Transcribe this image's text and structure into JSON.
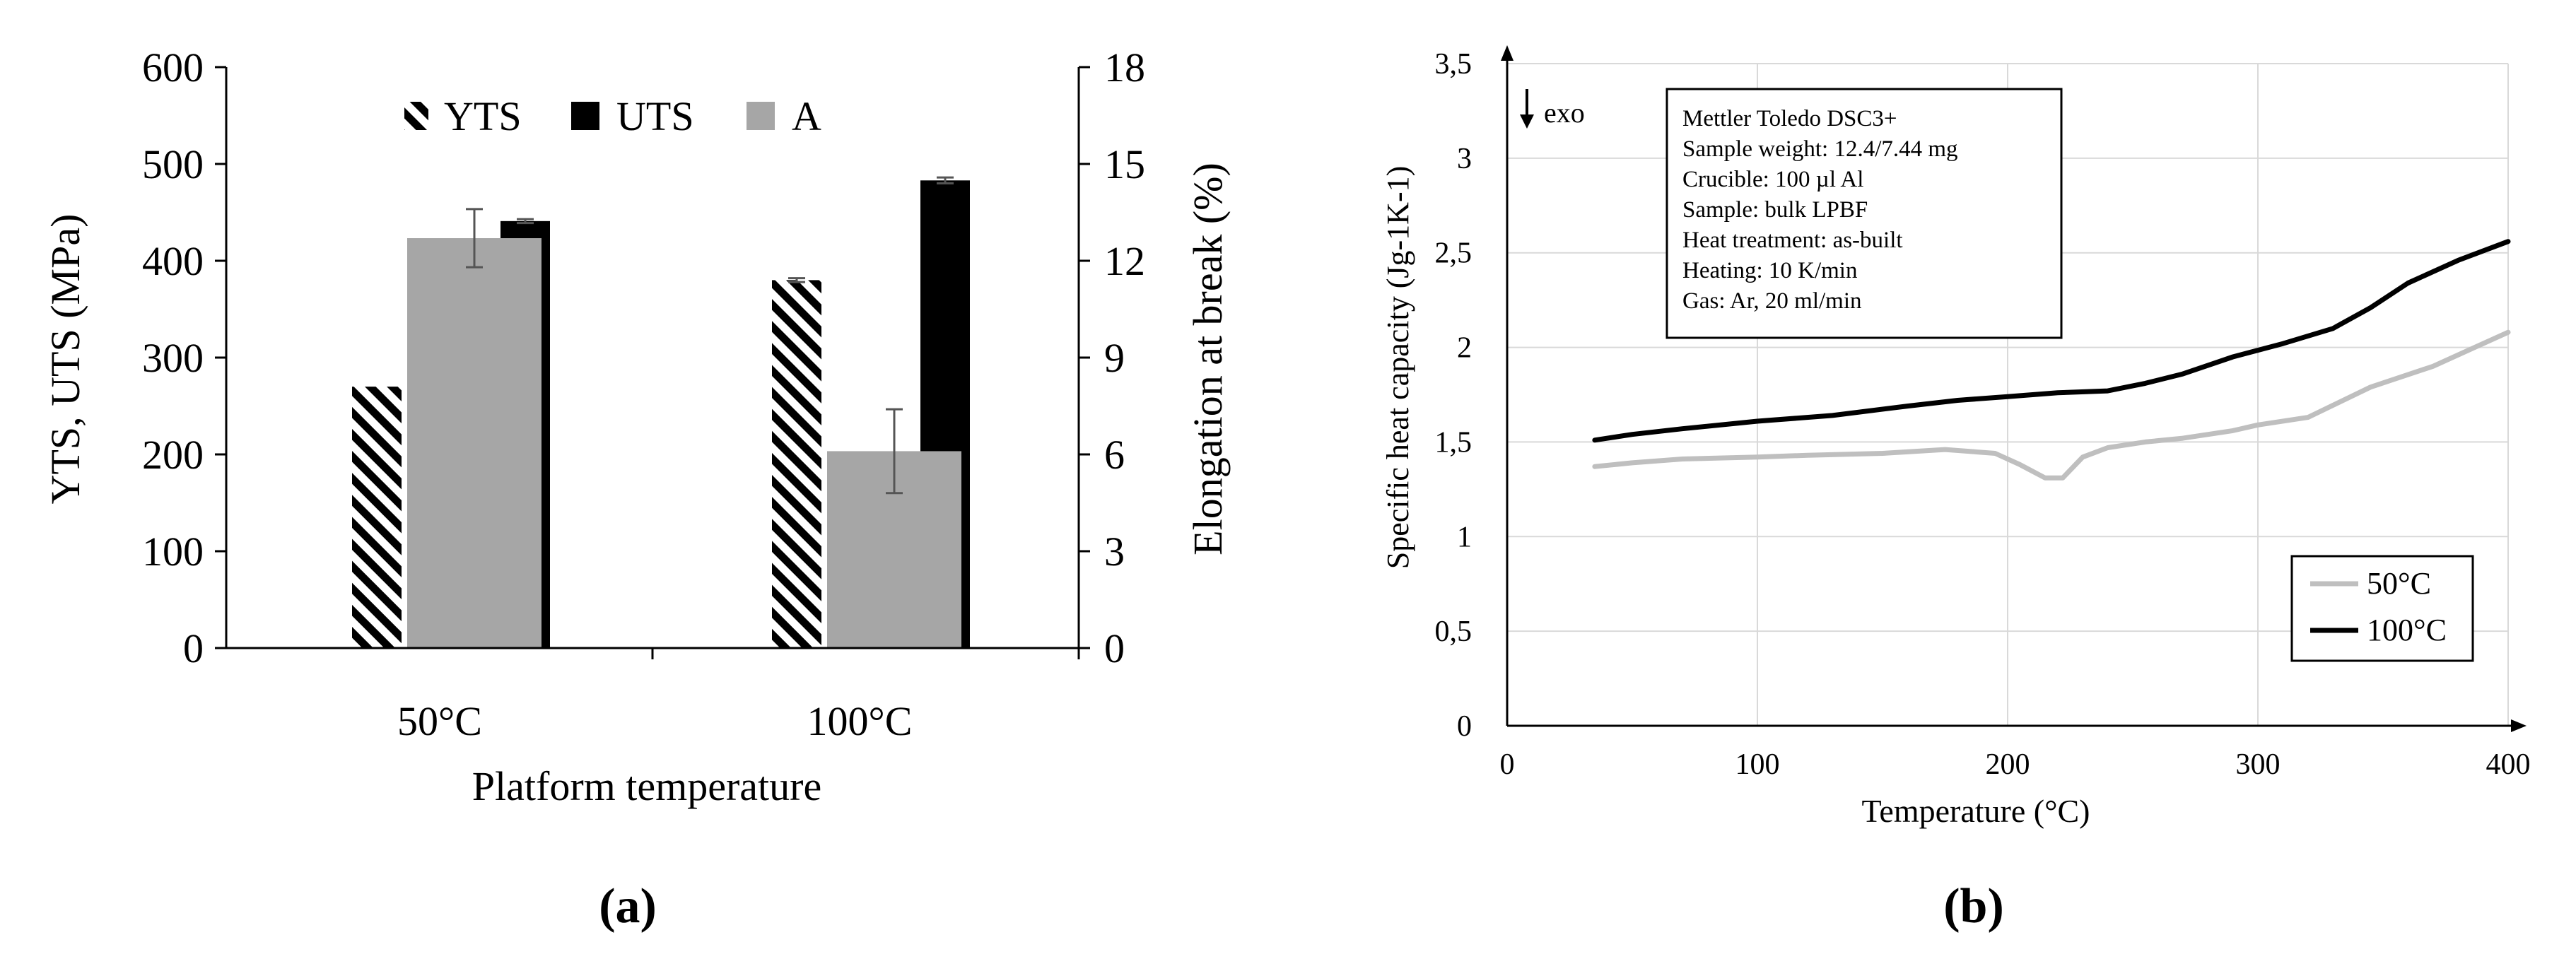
{
  "colors": {
    "black": "#000000",
    "gray": "#a6a6a6",
    "light_gray_line": "#bfbfbf",
    "grid": "#d9d9d9"
  },
  "chart_data": [
    {
      "type": "bar",
      "panel_label": "(a)",
      "categories": [
        "50°C",
        "100°C"
      ],
      "xlabel": "Platform temperature",
      "ylabel": "YTS, UTS (MPa)",
      "y2label": "Elongation at break (%)",
      "ylim": [
        0,
        600
      ],
      "y2lim": [
        0,
        18
      ],
      "yticks": [
        "0",
        "100",
        "200",
        "300",
        "400",
        "500",
        "600"
      ],
      "y2ticks": [
        "0",
        "3",
        "6",
        "9",
        "12",
        "15",
        "18"
      ],
      "legend": [
        "YTS",
        "UTS",
        "A"
      ],
      "series": [
        {
          "name": "YTS",
          "axis": "left",
          "pattern": "hatch",
          "values": [
            270,
            380
          ],
          "errors": [
            0,
            2
          ]
        },
        {
          "name": "UTS",
          "axis": "left",
          "pattern": "solid-black",
          "values": [
            441,
            483
          ],
          "errors": [
            2,
            3
          ]
        },
        {
          "name": "A",
          "axis": "right",
          "pattern": "solid-gray",
          "values": [
            12.7,
            6.1
          ],
          "errors": [
            0.9,
            1.3
          ]
        }
      ]
    },
    {
      "type": "line",
      "panel_label": "(b)",
      "xlabel": "Temperature (°C)",
      "ylabel": "Specific heat capacity (Jg-1K-1)",
      "xlim": [
        0,
        400
      ],
      "ylim": [
        0,
        3.5
      ],
      "xticks": [
        "0",
        "100",
        "200",
        "300",
        "400"
      ],
      "yticks": [
        "0",
        "0,5",
        "1",
        "1,5",
        "2",
        "2,5",
        "3",
        "3,5"
      ],
      "exo_label": "exo",
      "info_box": [
        "Mettler Toledo DSC3+",
        "Sample weight: 12.4/7.44 mg",
        "Crucible: 100 µl Al",
        "Sample: bulk LPBF",
        "Heat treatment: as-built",
        "Heating: 10 K/min",
        "Gas: Ar, 20 ml/min"
      ],
      "series": [
        {
          "name": "50°C",
          "color": "#bfbfbf",
          "x": [
            35,
            50,
            70,
            100,
            120,
            150,
            175,
            195,
            205,
            215,
            222,
            230,
            240,
            255,
            270,
            290,
            300,
            320,
            345,
            370,
            385,
            400
          ],
          "y": [
            1.37,
            1.39,
            1.41,
            1.42,
            1.43,
            1.44,
            1.46,
            1.44,
            1.38,
            1.31,
            1.31,
            1.42,
            1.47,
            1.5,
            1.52,
            1.56,
            1.59,
            1.63,
            1.79,
            1.9,
            1.99,
            2.08
          ]
        },
        {
          "name": "100°C",
          "color": "#000000",
          "x": [
            35,
            50,
            70,
            100,
            130,
            160,
            180,
            200,
            220,
            240,
            255,
            270,
            290,
            310,
            330,
            345,
            360,
            380,
            400
          ],
          "y": [
            1.51,
            1.54,
            1.57,
            1.61,
            1.64,
            1.69,
            1.72,
            1.74,
            1.76,
            1.77,
            1.81,
            1.86,
            1.95,
            2.02,
            2.1,
            2.21,
            2.34,
            2.46,
            2.56
          ]
        }
      ]
    }
  ]
}
